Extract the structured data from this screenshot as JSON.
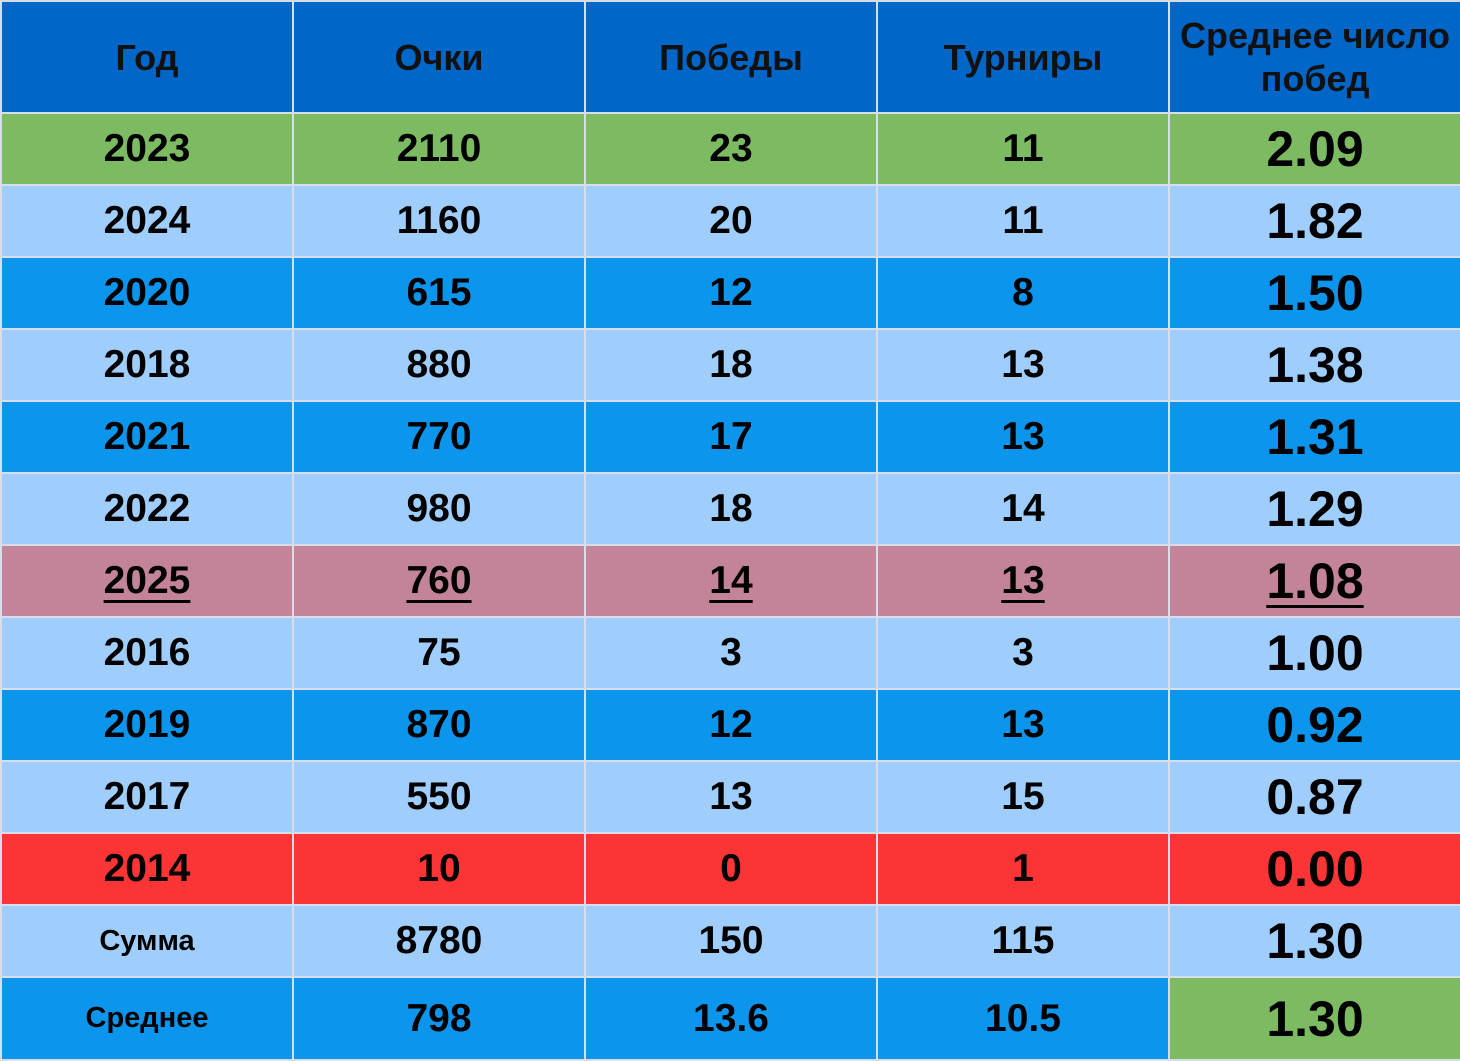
{
  "chart_data": {
    "type": "table",
    "columns": [
      "Год",
      "Очки",
      "Победы",
      "Турниры",
      "Среднее число побед"
    ],
    "rows": [
      {
        "year": "2023",
        "points": "2110",
        "wins": "23",
        "tournaments": "11",
        "avg": "2.09",
        "style": "green"
      },
      {
        "year": "2024",
        "points": "1160",
        "wins": "20",
        "tournaments": "11",
        "avg": "1.82",
        "style": "light"
      },
      {
        "year": "2020",
        "points": "615",
        "wins": "12",
        "tournaments": "8",
        "avg": "1.50",
        "style": "mid"
      },
      {
        "year": "2018",
        "points": "880",
        "wins": "18",
        "tournaments": "13",
        "avg": "1.38",
        "style": "light"
      },
      {
        "year": "2021",
        "points": "770",
        "wins": "17",
        "tournaments": "13",
        "avg": "1.31",
        "style": "mid"
      },
      {
        "year": "2022",
        "points": "980",
        "wins": "18",
        "tournaments": "14",
        "avg": "1.29",
        "style": "light"
      },
      {
        "year": "2025",
        "points": "760",
        "wins": "14",
        "tournaments": "13",
        "avg": "1.08",
        "style": "pink",
        "underlined": true
      },
      {
        "year": "2016",
        "points": "75",
        "wins": "3",
        "tournaments": "3",
        "avg": "1.00",
        "style": "light"
      },
      {
        "year": "2019",
        "points": "870",
        "wins": "12",
        "tournaments": "13",
        "avg": "0.92",
        "style": "mid"
      },
      {
        "year": "2017",
        "points": "550",
        "wins": "13",
        "tournaments": "15",
        "avg": "0.87",
        "style": "light"
      },
      {
        "year": "2014",
        "points": "10",
        "wins": "0",
        "tournaments": "1",
        "avg": "0.00",
        "style": "red"
      }
    ],
    "summary": [
      {
        "label": "Сумма",
        "points": "8780",
        "wins": "150",
        "tournaments": "115",
        "avg": "1.30",
        "style": "light"
      },
      {
        "label": "Среднее",
        "points": "798",
        "wins": "13.6",
        "tournaments": "10.5",
        "avg": "1.30",
        "style": "mid",
        "avg_highlight": "green"
      }
    ]
  },
  "colors": {
    "header": "#0067c9",
    "green": "#7dbb62",
    "light": "#9fcdfc",
    "mid": "#0b95ec",
    "pink": "#c38399",
    "red": "#fb3535"
  }
}
